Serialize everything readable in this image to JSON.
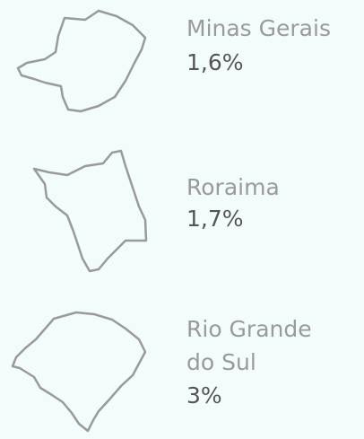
{
  "items": [
    {
      "name": [
        "Minas Gerais"
      ],
      "value": "1,6%"
    },
    {
      "name": [
        "Roraima"
      ],
      "value": "1,7%"
    },
    {
      "name": [
        "Rio Grande",
        "do Sul"
      ],
      "value": "3%"
    }
  ]
}
